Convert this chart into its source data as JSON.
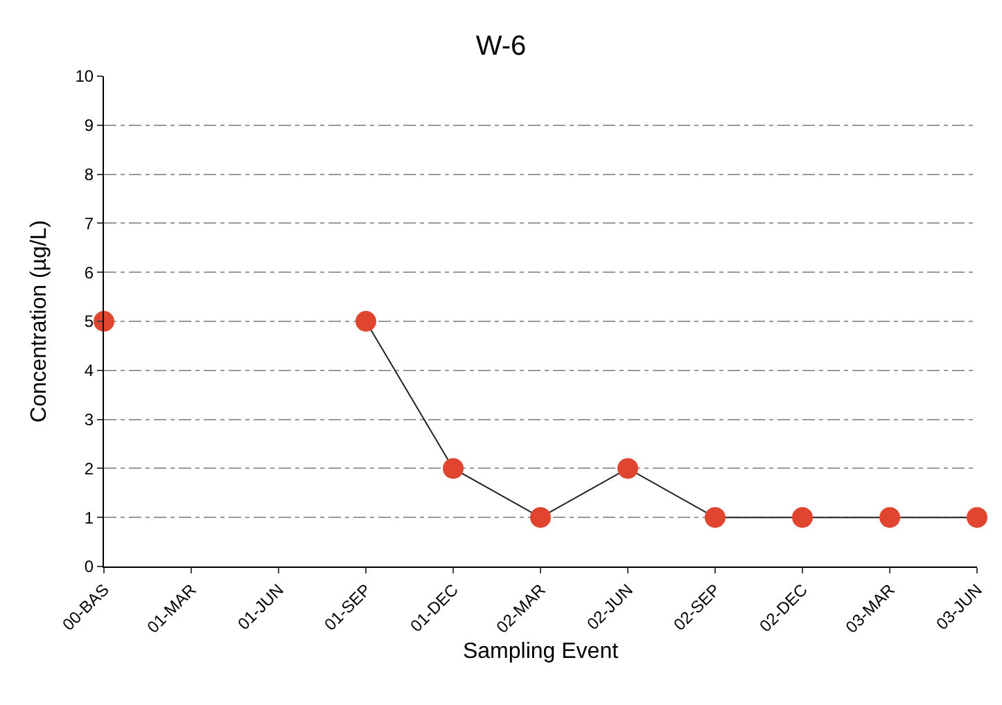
{
  "chart_data": {
    "type": "line",
    "title": "W-6",
    "xlabel": "Sampling Event",
    "ylabel": "Concentration (µg/L)",
    "categories": [
      "00-BAS",
      "01-MAR",
      "01-JUN",
      "01-SEP",
      "01-DEC",
      "02-MAR",
      "02-JUN",
      "02-SEP",
      "02-DEC",
      "03-MAR",
      "03-JUN"
    ],
    "series": [
      {
        "color": "#e0452f",
        "values": [
          5,
          null,
          null,
          5,
          2,
          1,
          2,
          1,
          1,
          1,
          1
        ]
      }
    ],
    "ylim": [
      0,
      10
    ],
    "yticks": [
      0,
      1,
      2,
      3,
      4,
      5,
      6,
      7,
      8,
      9,
      10
    ],
    "grid": "y",
    "legend": false,
    "marker": "circle",
    "line_style": "solid"
  }
}
